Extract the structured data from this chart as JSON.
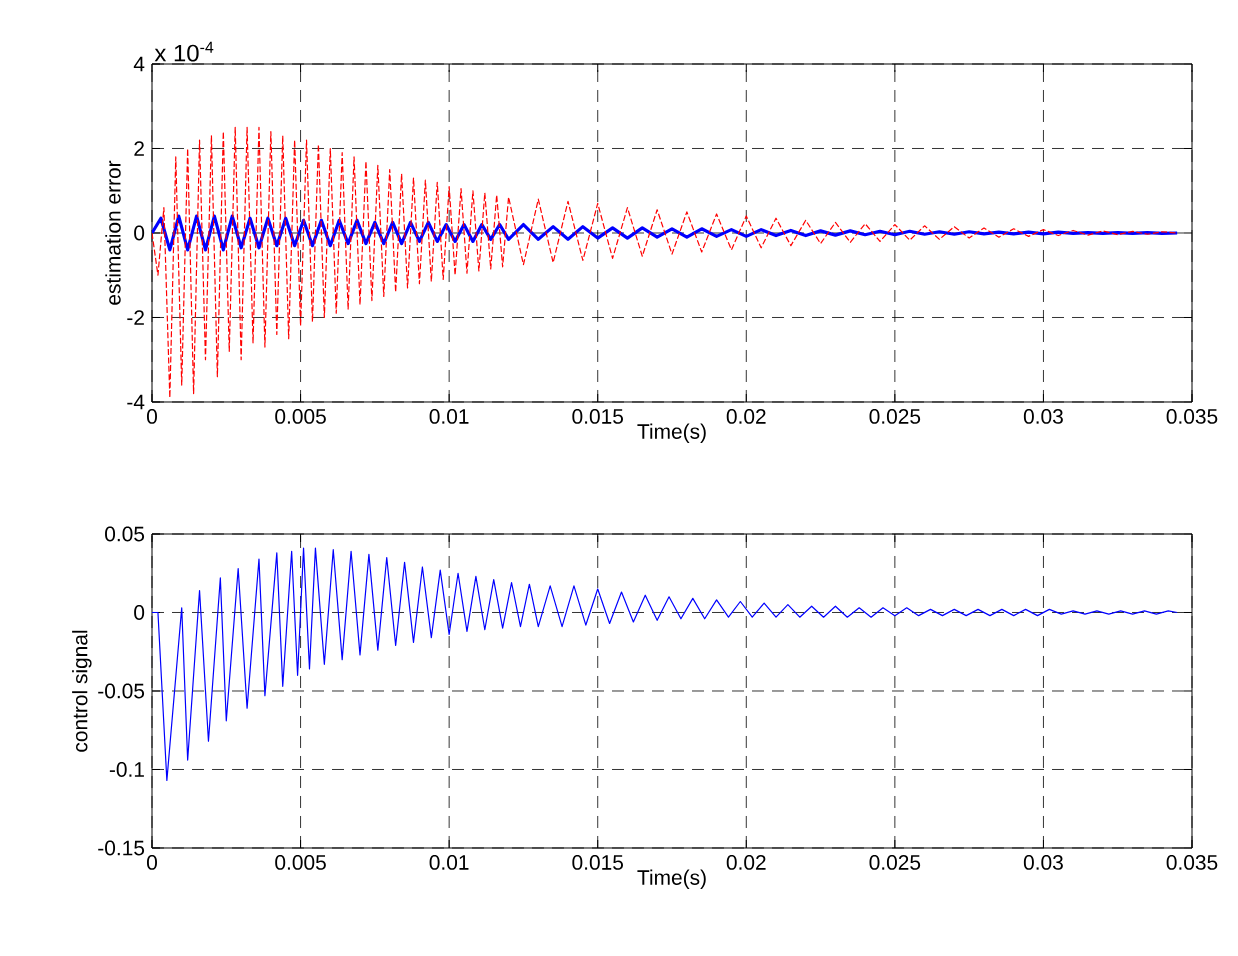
{
  "chart_data": [
    {
      "type": "line",
      "xlabel": "Time(s)",
      "ylabel": "estimation error",
      "annotations": [
        "x 10$^{-4}$"
      ],
      "grid": true,
      "xlim": [
        0,
        0.035
      ],
      "xticks": [
        0,
        0.005,
        0.01,
        0.015,
        0.02,
        0.025,
        0.03,
        0.035
      ],
      "ylim": [
        -4,
        4
      ],
      "yticks": [
        -4,
        -2,
        0,
        2,
        4
      ],
      "series": [
        {
          "color": "#ff0000",
          "line_style": "dashed",
          "x": [
            0,
            0.0002,
            0.0004,
            0.0006,
            0.0008,
            0.001,
            0.0012,
            0.0014,
            0.0016,
            0.0018,
            0.002,
            0.0022,
            0.0024,
            0.0026,
            0.0028,
            0.003,
            0.0032,
            0.0034,
            0.0036,
            0.0038,
            0.004,
            0.0042,
            0.0044,
            0.0046,
            0.0048,
            0.005,
            0.0052,
            0.0054,
            0.0056,
            0.0058,
            0.006,
            0.0062,
            0.0064,
            0.0066,
            0.0068,
            0.007,
            0.0072,
            0.0074,
            0.0076,
            0.0078,
            0.008,
            0.0082,
            0.0084,
            0.0086,
            0.0088,
            0.009,
            0.0092,
            0.0094,
            0.0096,
            0.0098,
            0.01,
            0.0102,
            0.0104,
            0.0106,
            0.0108,
            0.011,
            0.0112,
            0.0114,
            0.0116,
            0.0118,
            0.012,
            0.0125,
            0.013,
            0.0135,
            0.014,
            0.0145,
            0.015,
            0.0155,
            0.016,
            0.0165,
            0.017,
            0.0175,
            0.018,
            0.0185,
            0.019,
            0.0195,
            0.02,
            0.0205,
            0.021,
            0.0215,
            0.022,
            0.0225,
            0.023,
            0.0235,
            0.024,
            0.0245,
            0.025,
            0.0255,
            0.026,
            0.0265,
            0.027,
            0.0275,
            0.028,
            0.0285,
            0.029,
            0.0295,
            0.03,
            0.0305,
            0.031,
            0.0315,
            0.032,
            0.0325,
            0.033,
            0.0335,
            0.034,
            0.0345
          ],
          "values": [
            0,
            -1.0,
            0.6,
            -3.9,
            1.8,
            -3.6,
            2.0,
            -3.8,
            2.2,
            -3.0,
            2.3,
            -3.4,
            2.4,
            -2.8,
            2.5,
            -3.0,
            2.5,
            -2.6,
            2.5,
            -2.7,
            2.4,
            -2.4,
            2.3,
            -2.5,
            2.2,
            -2.2,
            2.2,
            -2.1,
            2.1,
            -2.0,
            2.0,
            -1.9,
            1.9,
            -1.8,
            1.8,
            -1.7,
            1.7,
            -1.6,
            1.6,
            -1.5,
            1.5,
            -1.4,
            1.4,
            -1.3,
            1.3,
            -1.2,
            1.25,
            -1.15,
            1.2,
            -1.1,
            1.1,
            -1.0,
            1.05,
            -0.95,
            1.0,
            -0.9,
            0.95,
            -0.85,
            0.9,
            -0.8,
            0.85,
            -0.75,
            0.8,
            -0.7,
            0.75,
            -0.65,
            0.7,
            -0.6,
            0.6,
            -0.55,
            0.55,
            -0.5,
            0.5,
            -0.45,
            0.45,
            -0.4,
            0.4,
            -0.35,
            0.35,
            -0.3,
            0.3,
            -0.25,
            0.25,
            -0.22,
            0.22,
            -0.2,
            0.2,
            -0.17,
            0.17,
            -0.15,
            0.15,
            -0.12,
            0.12,
            -0.1,
            0.1,
            -0.08,
            0.08,
            -0.06,
            0.06,
            -0.05,
            0.05,
            -0.04,
            0.04,
            -0.03,
            0.03,
            0
          ]
        },
        {
          "color": "#0000ff",
          "x": [
            0,
            0.0003,
            0.0006,
            0.0009,
            0.0012,
            0.0015,
            0.0018,
            0.0021,
            0.0024,
            0.0027,
            0.003,
            0.0033,
            0.0036,
            0.0039,
            0.0042,
            0.0045,
            0.0048,
            0.0051,
            0.0054,
            0.0057,
            0.006,
            0.0063,
            0.0066,
            0.0069,
            0.0072,
            0.0075,
            0.0078,
            0.0081,
            0.0084,
            0.0087,
            0.009,
            0.0093,
            0.0096,
            0.0099,
            0.0102,
            0.0105,
            0.0108,
            0.0111,
            0.0114,
            0.0117,
            0.012,
            0.0125,
            0.013,
            0.0135,
            0.014,
            0.0145,
            0.015,
            0.0155,
            0.016,
            0.0165,
            0.017,
            0.0175,
            0.018,
            0.0185,
            0.019,
            0.0195,
            0.02,
            0.0205,
            0.021,
            0.0215,
            0.022,
            0.0225,
            0.023,
            0.0235,
            0.024,
            0.0245,
            0.025,
            0.0255,
            0.026,
            0.0265,
            0.027,
            0.0275,
            0.028,
            0.0285,
            0.029,
            0.0295,
            0.03,
            0.0305,
            0.031,
            0.0315,
            0.032,
            0.0325,
            0.033,
            0.0335,
            0.034,
            0.0345
          ],
          "values": [
            0,
            0.35,
            -0.4,
            0.4,
            -0.4,
            0.4,
            -0.4,
            0.4,
            -0.4,
            0.4,
            -0.35,
            0.35,
            -0.35,
            0.35,
            -0.3,
            0.35,
            -0.3,
            0.3,
            -0.3,
            0.3,
            -0.3,
            0.3,
            -0.25,
            0.3,
            -0.25,
            0.25,
            -0.25,
            0.25,
            -0.25,
            0.25,
            -0.2,
            0.25,
            -0.2,
            0.2,
            -0.2,
            0.2,
            -0.2,
            0.2,
            -0.15,
            0.2,
            -0.15,
            0.2,
            -0.15,
            0.15,
            -0.15,
            0.15,
            -0.12,
            0.12,
            -0.12,
            0.12,
            -0.1,
            0.1,
            -0.1,
            0.1,
            -0.08,
            0.08,
            -0.08,
            0.08,
            -0.06,
            0.06,
            -0.06,
            0.05,
            -0.05,
            0.05,
            -0.04,
            0.04,
            -0.04,
            0.04,
            -0.03,
            0.03,
            -0.03,
            0.03,
            -0.02,
            0.02,
            -0.02,
            0.02,
            -0.02,
            0.02,
            -0.01,
            0.01,
            -0.01,
            0.01,
            -0.01,
            0.01,
            -0.01,
            0
          ]
        }
      ]
    },
    {
      "type": "line",
      "xlabel": "Time(s)",
      "ylabel": "control signal",
      "grid": true,
      "xlim": [
        0,
        0.035
      ],
      "xticks": [
        0,
        0.005,
        0.01,
        0.015,
        0.02,
        0.025,
        0.03,
        0.035
      ],
      "ylim": [
        -0.15,
        0.05
      ],
      "yticks": [
        -0.15,
        -0.1,
        -0.05,
        0,
        0.05
      ],
      "series": [
        {
          "color": "#0000ff",
          "x": [
            0,
            0.0002,
            0.0005,
            0.001,
            0.0012,
            0.0016,
            0.0019,
            0.0023,
            0.0025,
            0.0029,
            0.0032,
            0.0036,
            0.0038,
            0.0042,
            0.0044,
            0.0047,
            0.0049,
            0.0051,
            0.0053,
            0.0055,
            0.0058,
            0.0061,
            0.0064,
            0.0067,
            0.007,
            0.0073,
            0.0076,
            0.0079,
            0.0082,
            0.0085,
            0.0088,
            0.0091,
            0.0094,
            0.0097,
            0.01,
            0.0103,
            0.0106,
            0.0109,
            0.0112,
            0.0115,
            0.0118,
            0.0121,
            0.0124,
            0.0127,
            0.013,
            0.0134,
            0.0138,
            0.0142,
            0.0146,
            0.015,
            0.0154,
            0.0158,
            0.0162,
            0.0166,
            0.017,
            0.0174,
            0.0178,
            0.0182,
            0.0186,
            0.019,
            0.0194,
            0.0198,
            0.0202,
            0.0206,
            0.021,
            0.0214,
            0.0218,
            0.0222,
            0.0226,
            0.023,
            0.0234,
            0.0238,
            0.0242,
            0.0246,
            0.025,
            0.0254,
            0.0258,
            0.0262,
            0.0266,
            0.027,
            0.0274,
            0.0278,
            0.0282,
            0.0286,
            0.029,
            0.0294,
            0.0298,
            0.0302,
            0.0306,
            0.031,
            0.0314,
            0.0318,
            0.0322,
            0.0326,
            0.033,
            0.0334,
            0.0338,
            0.0342,
            0.0345
          ],
          "values": [
            0,
            0,
            -0.107,
            0.003,
            -0.094,
            0.014,
            -0.082,
            0.022,
            -0.069,
            0.028,
            -0.061,
            0.034,
            -0.053,
            0.038,
            -0.047,
            0.039,
            -0.04,
            0.041,
            -0.036,
            0.041,
            -0.033,
            0.04,
            -0.03,
            0.039,
            -0.027,
            0.037,
            -0.024,
            0.035,
            -0.021,
            0.032,
            -0.019,
            0.029,
            -0.016,
            0.027,
            -0.014,
            0.025,
            -0.012,
            0.023,
            -0.011,
            0.021,
            -0.01,
            0.019,
            -0.009,
            0.018,
            -0.009,
            0.017,
            -0.009,
            0.017,
            -0.008,
            0.015,
            -0.007,
            0.013,
            -0.006,
            0.011,
            -0.005,
            0.01,
            -0.004,
            0.009,
            -0.004,
            0.008,
            -0.003,
            0.007,
            -0.003,
            0.006,
            -0.003,
            0.005,
            -0.003,
            0.004,
            -0.003,
            0.004,
            -0.003,
            0.003,
            -0.003,
            0.003,
            -0.002,
            0.003,
            -0.002,
            0.002,
            -0.002,
            0.002,
            -0.002,
            0.002,
            -0.002,
            0.002,
            -0.002,
            0.002,
            -0.002,
            0.002,
            -0.001,
            0.001,
            -0.001,
            0.001,
            -0.001,
            0.001,
            -0.001,
            0.001,
            -0.001,
            0.001,
            0
          ]
        }
      ]
    }
  ]
}
